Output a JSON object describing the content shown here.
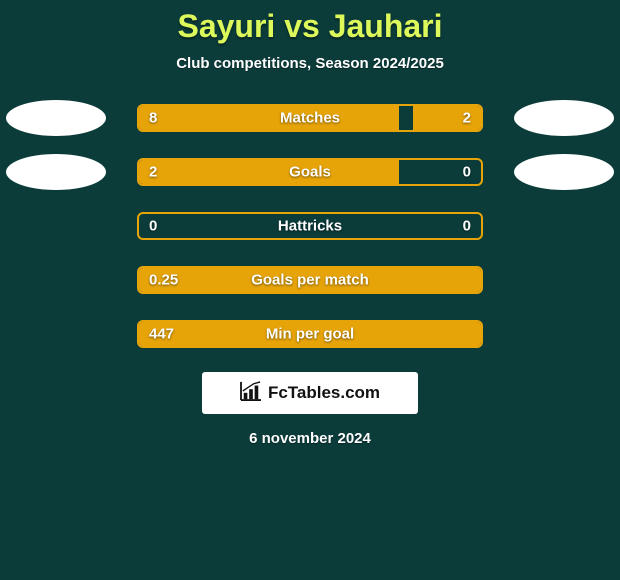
{
  "colors": {
    "page_bg": "#0b3c3a",
    "title_color": "#ddf85b",
    "text_color": "#ffffff",
    "bar_color": "#e6a409",
    "panel_bg": "#ffffff"
  },
  "title": "Sayuri vs Jauhari",
  "subtitle": "Club competitions, Season 2024/2025",
  "rows": [
    {
      "label": "Matches",
      "left": "8",
      "right": "2",
      "left_pct": 76,
      "right_pct": 20,
      "show_badges": true
    },
    {
      "label": "Goals",
      "left": "2",
      "right": "0",
      "left_pct": 76,
      "right_pct": 0,
      "show_badges": true
    },
    {
      "label": "Hattricks",
      "left": "0",
      "right": "0",
      "left_pct": 0,
      "right_pct": 0,
      "show_badges": false
    },
    {
      "label": "Goals per match",
      "left": "0.25",
      "right": "",
      "left_pct": 100,
      "right_pct": 0,
      "show_badges": false
    },
    {
      "label": "Min per goal",
      "left": "447",
      "right": "",
      "left_pct": 100,
      "right_pct": 0,
      "show_badges": false
    }
  ],
  "brand": "FcTables.com",
  "date": "6 november 2024"
}
